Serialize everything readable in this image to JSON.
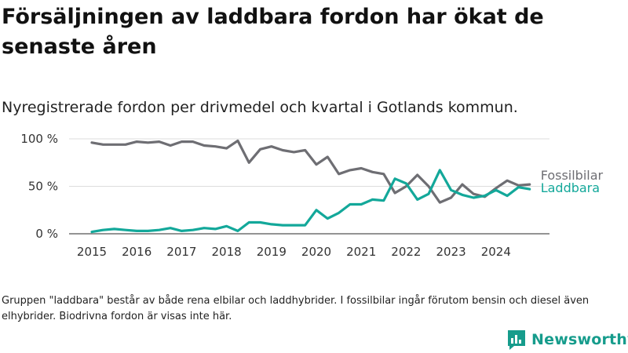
{
  "title": "Försäljningen av laddbara fordon har ökat de senaste åren",
  "subtitle": "Nyregistrerade fordon per drivmedel och kvartal i Gotlands kommun.",
  "footnote": "Gruppen \"laddbara\" består av både rena elbilar och laddhybrider. I fossilbilar ingår förutom bensin och diesel även elhybrider. Biodrivna fordon är visas inte här.",
  "brand": {
    "name": "Newsworthy",
    "icon": "newsworthy-logo-icon",
    "color": "#169c8c"
  },
  "chart_data": {
    "type": "line",
    "x_start_year": 2015,
    "quarters_per_year": 4,
    "xlim": [
      2015,
      2025
    ],
    "ylim": [
      0,
      100
    ],
    "y_ticks": [
      {
        "value": 0,
        "label": "0 %"
      },
      {
        "value": 50,
        "label": "50 %"
      },
      {
        "value": 100,
        "label": "100 %"
      }
    ],
    "x_ticks": [
      "2015",
      "2016",
      "2017",
      "2018",
      "2019",
      "2020",
      "2021",
      "2022",
      "2023",
      "2024"
    ],
    "grid": true,
    "series": [
      {
        "name": "Fossilbilar",
        "color": "#6e6e73",
        "values": [
          96,
          94,
          94,
          94,
          97,
          96,
          97,
          93,
          97,
          97,
          93,
          92,
          90,
          98,
          75,
          89,
          92,
          88,
          86,
          88,
          73,
          81,
          63,
          67,
          69,
          65,
          63,
          43,
          50,
          62,
          50,
          33,
          38,
          52,
          42,
          39,
          48,
          56,
          51,
          52
        ]
      },
      {
        "name": "Laddbara",
        "color": "#13a89a",
        "values": [
          2,
          4,
          5,
          4,
          3,
          3,
          4,
          6,
          3,
          4,
          6,
          5,
          8,
          3,
          12,
          12,
          10,
          9,
          9,
          9,
          25,
          16,
          22,
          31,
          31,
          36,
          35,
          58,
          53,
          36,
          42,
          67,
          46,
          41,
          38,
          40,
          46,
          40,
          49,
          47
        ]
      }
    ]
  }
}
